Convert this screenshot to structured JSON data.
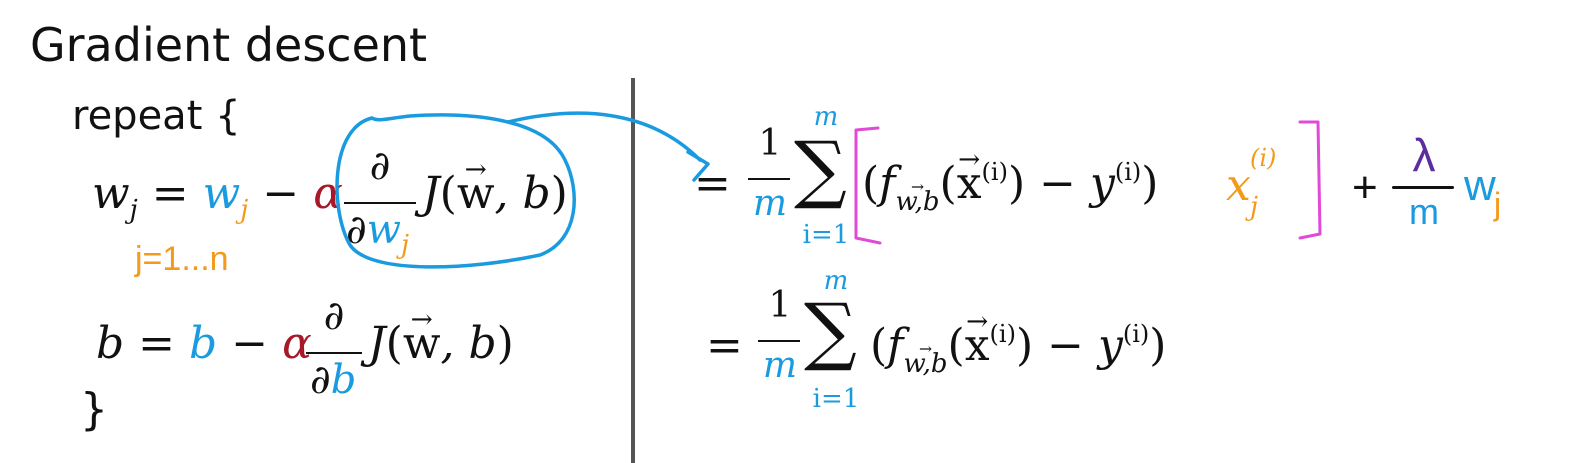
{
  "title": "Gradient descent",
  "repeat_label": "repeat {",
  "close_brace": "}",
  "symbols": {
    "w_j": "w",
    "j": "j",
    "b": "b",
    "alpha": "α",
    "partial": "∂",
    "equals": "=",
    "minus": "−",
    "plus": "+",
    "J": "J",
    "open_paren": "(",
    "close_paren": ")",
    "vec_w": "w",
    "comma_b": ", b",
    "one": "1",
    "m": "m",
    "sigma": "∑",
    "sum_top": "m",
    "sum_bottom": "i=1",
    "f": "f",
    "f_sub": "w,b",
    "x": "x",
    "sup_i": "(i)",
    "y": "y",
    "lambda": "λ"
  },
  "annotation_range": "j=1...n",
  "colors": {
    "blue": "#1a9be0",
    "orange": "#f39a1a",
    "red": "#a8182b",
    "magenta": "#e04ad6",
    "purple": "#5b2ea0",
    "divider": "#555555"
  },
  "icons": [
    "circle-annotation",
    "curved-arrow",
    "pink-brackets",
    "divider-line"
  ]
}
